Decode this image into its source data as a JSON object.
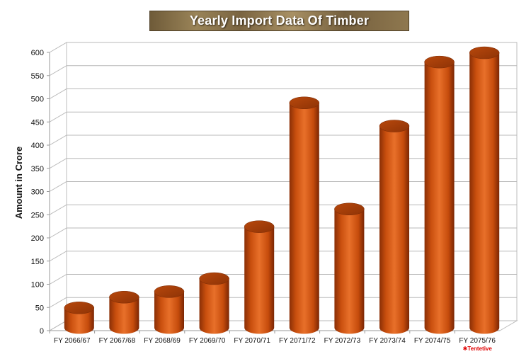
{
  "chart_data": {
    "type": "bar",
    "title": "Yearly Import Data Of Timber",
    "xlabel": "",
    "ylabel": "Amount in Crore",
    "categories": [
      "FY 2066/67",
      "FY 2067/68",
      "FY 2068/69",
      "FY 2069/70",
      "FY 2070/71",
      "FY 2071/72",
      "FY 2072/73",
      "FY 2073/74",
      "FY 2074/75",
      "FY 2075/76"
    ],
    "values": [
      40,
      63,
      75,
      103,
      215,
      482,
      253,
      432,
      570,
      590
    ],
    "ylim": [
      0,
      600
    ],
    "yticks": [
      0,
      50,
      100,
      150,
      200,
      250,
      300,
      350,
      400,
      450,
      500,
      550,
      600
    ],
    "grid": true,
    "style": "3d-cylinder",
    "bar_color": "#d4570f",
    "annotation": "Tentetive",
    "annotation_symbol": "✱",
    "annotation_color": "#e00000"
  }
}
